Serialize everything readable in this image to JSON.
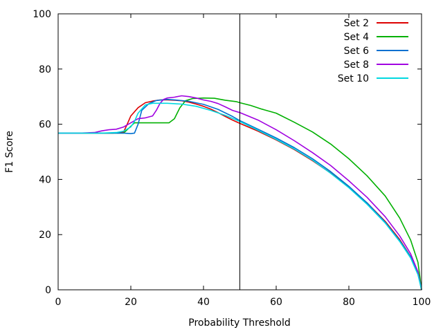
{
  "chart_data": {
    "type": "line",
    "xlabel": "Probability Threshold",
    "ylabel": "F1 Score",
    "xlim": [
      0,
      100
    ],
    "ylim": [
      0,
      100
    ],
    "xticks": [
      0,
      20,
      40,
      60,
      80,
      100
    ],
    "yticks": [
      0,
      20,
      40,
      60,
      80,
      100
    ],
    "grid": false,
    "legend": "top-right",
    "vline": 50,
    "series": [
      {
        "name": "Set 2",
        "color": "#dd0000",
        "points": [
          [
            0,
            56.8
          ],
          [
            15,
            56.8
          ],
          [
            18,
            57.2
          ],
          [
            19,
            60
          ],
          [
            20,
            63
          ],
          [
            22,
            66
          ],
          [
            24,
            67.8
          ],
          [
            26,
            68.4
          ],
          [
            28,
            68.8
          ],
          [
            30,
            68.8
          ],
          [
            32,
            68.7
          ],
          [
            34,
            68.5
          ],
          [
            36,
            68
          ],
          [
            38,
            67.3
          ],
          [
            40,
            66.5
          ],
          [
            42,
            65.5
          ],
          [
            44,
            64.2
          ],
          [
            46,
            62.8
          ],
          [
            48,
            61.5
          ],
          [
            50,
            60.3
          ],
          [
            55,
            57.5
          ],
          [
            60,
            54.3
          ],
          [
            65,
            50.8
          ],
          [
            70,
            46.8
          ],
          [
            75,
            42.3
          ],
          [
            80,
            37.2
          ],
          [
            85,
            31.5
          ],
          [
            90,
            24.8
          ],
          [
            94,
            18.2
          ],
          [
            97,
            12
          ],
          [
            99,
            6
          ],
          [
            100,
            0
          ]
        ]
      },
      {
        "name": "Set 4",
        "color": "#00b000",
        "points": [
          [
            0,
            56.8
          ],
          [
            18,
            56.8
          ],
          [
            21,
            60.5
          ],
          [
            24,
            60.5
          ],
          [
            28,
            60.5
          ],
          [
            30.5,
            60.5
          ],
          [
            32,
            62
          ],
          [
            33.5,
            66
          ],
          [
            35,
            68.5
          ],
          [
            37,
            69.3
          ],
          [
            40,
            69.5
          ],
          [
            43,
            69.4
          ],
          [
            46,
            68.7
          ],
          [
            49,
            68.2
          ],
          [
            50,
            67.8
          ],
          [
            53,
            66.8
          ],
          [
            56,
            65.5
          ],
          [
            60,
            64
          ],
          [
            65,
            60.7
          ],
          [
            70,
            57.2
          ],
          [
            75,
            52.8
          ],
          [
            80,
            47.5
          ],
          [
            85,
            41.3
          ],
          [
            90,
            34
          ],
          [
            94,
            26
          ],
          [
            97,
            18
          ],
          [
            99,
            10
          ],
          [
            100,
            0
          ]
        ]
      },
      {
        "name": "Set 6",
        "color": "#0070d0",
        "points": [
          [
            0,
            56.8
          ],
          [
            18,
            56.8
          ],
          [
            20,
            56.6
          ],
          [
            21,
            56.8
          ],
          [
            22,
            60
          ],
          [
            23,
            65
          ],
          [
            25,
            67.5
          ],
          [
            27,
            68.6
          ],
          [
            30,
            69
          ],
          [
            33,
            68.7
          ],
          [
            36,
            68.3
          ],
          [
            40,
            67.2
          ],
          [
            44,
            65.4
          ],
          [
            48,
            62.8
          ],
          [
            50,
            61.3
          ],
          [
            55,
            58.2
          ],
          [
            60,
            55
          ],
          [
            65,
            51.5
          ],
          [
            70,
            47.5
          ],
          [
            75,
            42.8
          ],
          [
            80,
            37.5
          ],
          [
            85,
            31.5
          ],
          [
            90,
            24.5
          ],
          [
            94,
            17.8
          ],
          [
            97,
            12
          ],
          [
            99,
            6
          ],
          [
            100,
            0
          ]
        ]
      },
      {
        "name": "Set 8",
        "color": "#a000e0",
        "points": [
          [
            0,
            56.8
          ],
          [
            6,
            56.8
          ],
          [
            10,
            57
          ],
          [
            12,
            57.6
          ],
          [
            14,
            58
          ],
          [
            16,
            58.2
          ],
          [
            18,
            59
          ],
          [
            20,
            60.5
          ],
          [
            22,
            62
          ],
          [
            24,
            62.3
          ],
          [
            26,
            63
          ],
          [
            27,
            65
          ],
          [
            28,
            67.5
          ],
          [
            29,
            69
          ],
          [
            30,
            69.5
          ],
          [
            32,
            69.8
          ],
          [
            34,
            70.3
          ],
          [
            36,
            70
          ],
          [
            38,
            69.5
          ],
          [
            40,
            68.8
          ],
          [
            42,
            68.3
          ],
          [
            44,
            67.5
          ],
          [
            46,
            66.3
          ],
          [
            48,
            65
          ],
          [
            50,
            64.2
          ],
          [
            55,
            61.5
          ],
          [
            60,
            58
          ],
          [
            65,
            54
          ],
          [
            70,
            49.7
          ],
          [
            75,
            45
          ],
          [
            80,
            39.5
          ],
          [
            85,
            33.5
          ],
          [
            90,
            26.5
          ],
          [
            94,
            19.5
          ],
          [
            97,
            13
          ],
          [
            99,
            6.5
          ],
          [
            100,
            0
          ]
        ]
      },
      {
        "name": "Set 10",
        "color": "#00d8e0",
        "points": [
          [
            0,
            56.8
          ],
          [
            12,
            56.8
          ],
          [
            16,
            57
          ],
          [
            18,
            57.5
          ],
          [
            20,
            59
          ],
          [
            21,
            61
          ],
          [
            22,
            64
          ],
          [
            24,
            67
          ],
          [
            26,
            67.6
          ],
          [
            30,
            67.6
          ],
          [
            34,
            67.3
          ],
          [
            38,
            66.5
          ],
          [
            42,
            65
          ],
          [
            46,
            63.2
          ],
          [
            50,
            61
          ],
          [
            55,
            57.8
          ],
          [
            60,
            54.5
          ],
          [
            65,
            51
          ],
          [
            70,
            47
          ],
          [
            75,
            42.2
          ],
          [
            80,
            37
          ],
          [
            85,
            31
          ],
          [
            90,
            24.2
          ],
          [
            94,
            17.5
          ],
          [
            97,
            11.5
          ],
          [
            99,
            5.5
          ],
          [
            100,
            0
          ]
        ]
      }
    ]
  }
}
